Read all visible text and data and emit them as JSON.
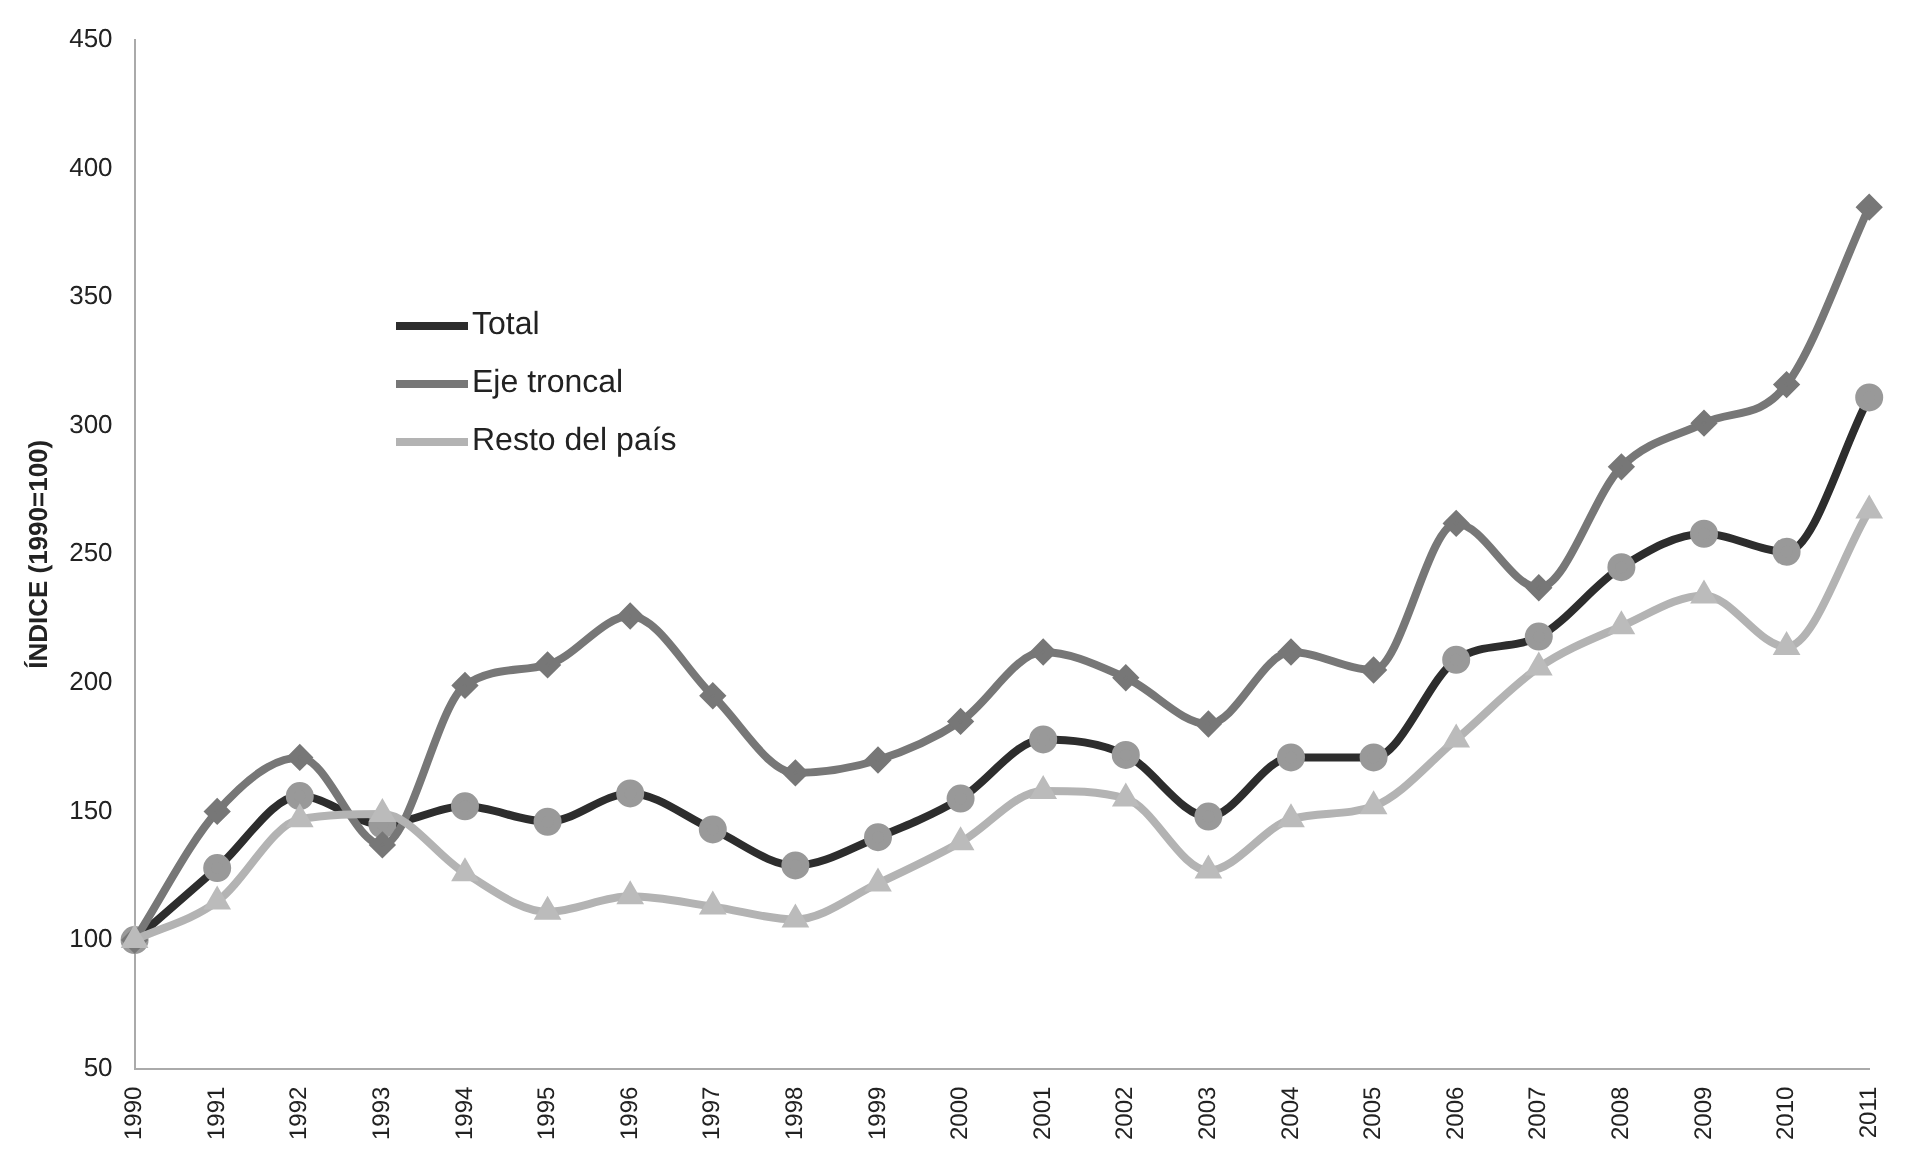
{
  "chart_data": {
    "type": "line",
    "ylabel": "ÍNDICE (1990=100)",
    "categories": [
      "1990",
      "1991",
      "1992",
      "1993",
      "1994",
      "1995",
      "1996",
      "1997",
      "1998",
      "1999",
      "2000",
      "2001",
      "2002",
      "2003",
      "2004",
      "2005",
      "2006",
      "2007",
      "2008",
      "2009",
      "2010",
      "2011"
    ],
    "series": [
      {
        "name": "Total",
        "color": "#2d2d2d",
        "marker": "circle",
        "values": [
          100,
          128,
          156,
          145,
          152,
          146,
          157,
          143,
          129,
          140,
          155,
          178,
          172,
          148,
          171,
          171,
          209,
          218,
          245,
          258,
          251,
          311
        ]
      },
      {
        "name": "Eje troncal",
        "color": "#777777",
        "marker": "diamond",
        "values": [
          100,
          150,
          171,
          137,
          199,
          207,
          226,
          195,
          165,
          170,
          185,
          212,
          202,
          184,
          212,
          205,
          262,
          237,
          284,
          301,
          316,
          385
        ]
      },
      {
        "name": "Resto del país",
        "color": "#b3b3b3",
        "marker": "triangle",
        "values": [
          100,
          115,
          147,
          149,
          126,
          111,
          117,
          113,
          108,
          122,
          138,
          158,
          155,
          127,
          147,
          152,
          178,
          206,
          222,
          234,
          214,
          267
        ]
      }
    ],
    "ylim": [
      50,
      450
    ],
    "yticks": [
      50,
      100,
      150,
      200,
      250,
      300,
      350,
      400,
      450
    ],
    "grid": false,
    "legend": "top left"
  }
}
